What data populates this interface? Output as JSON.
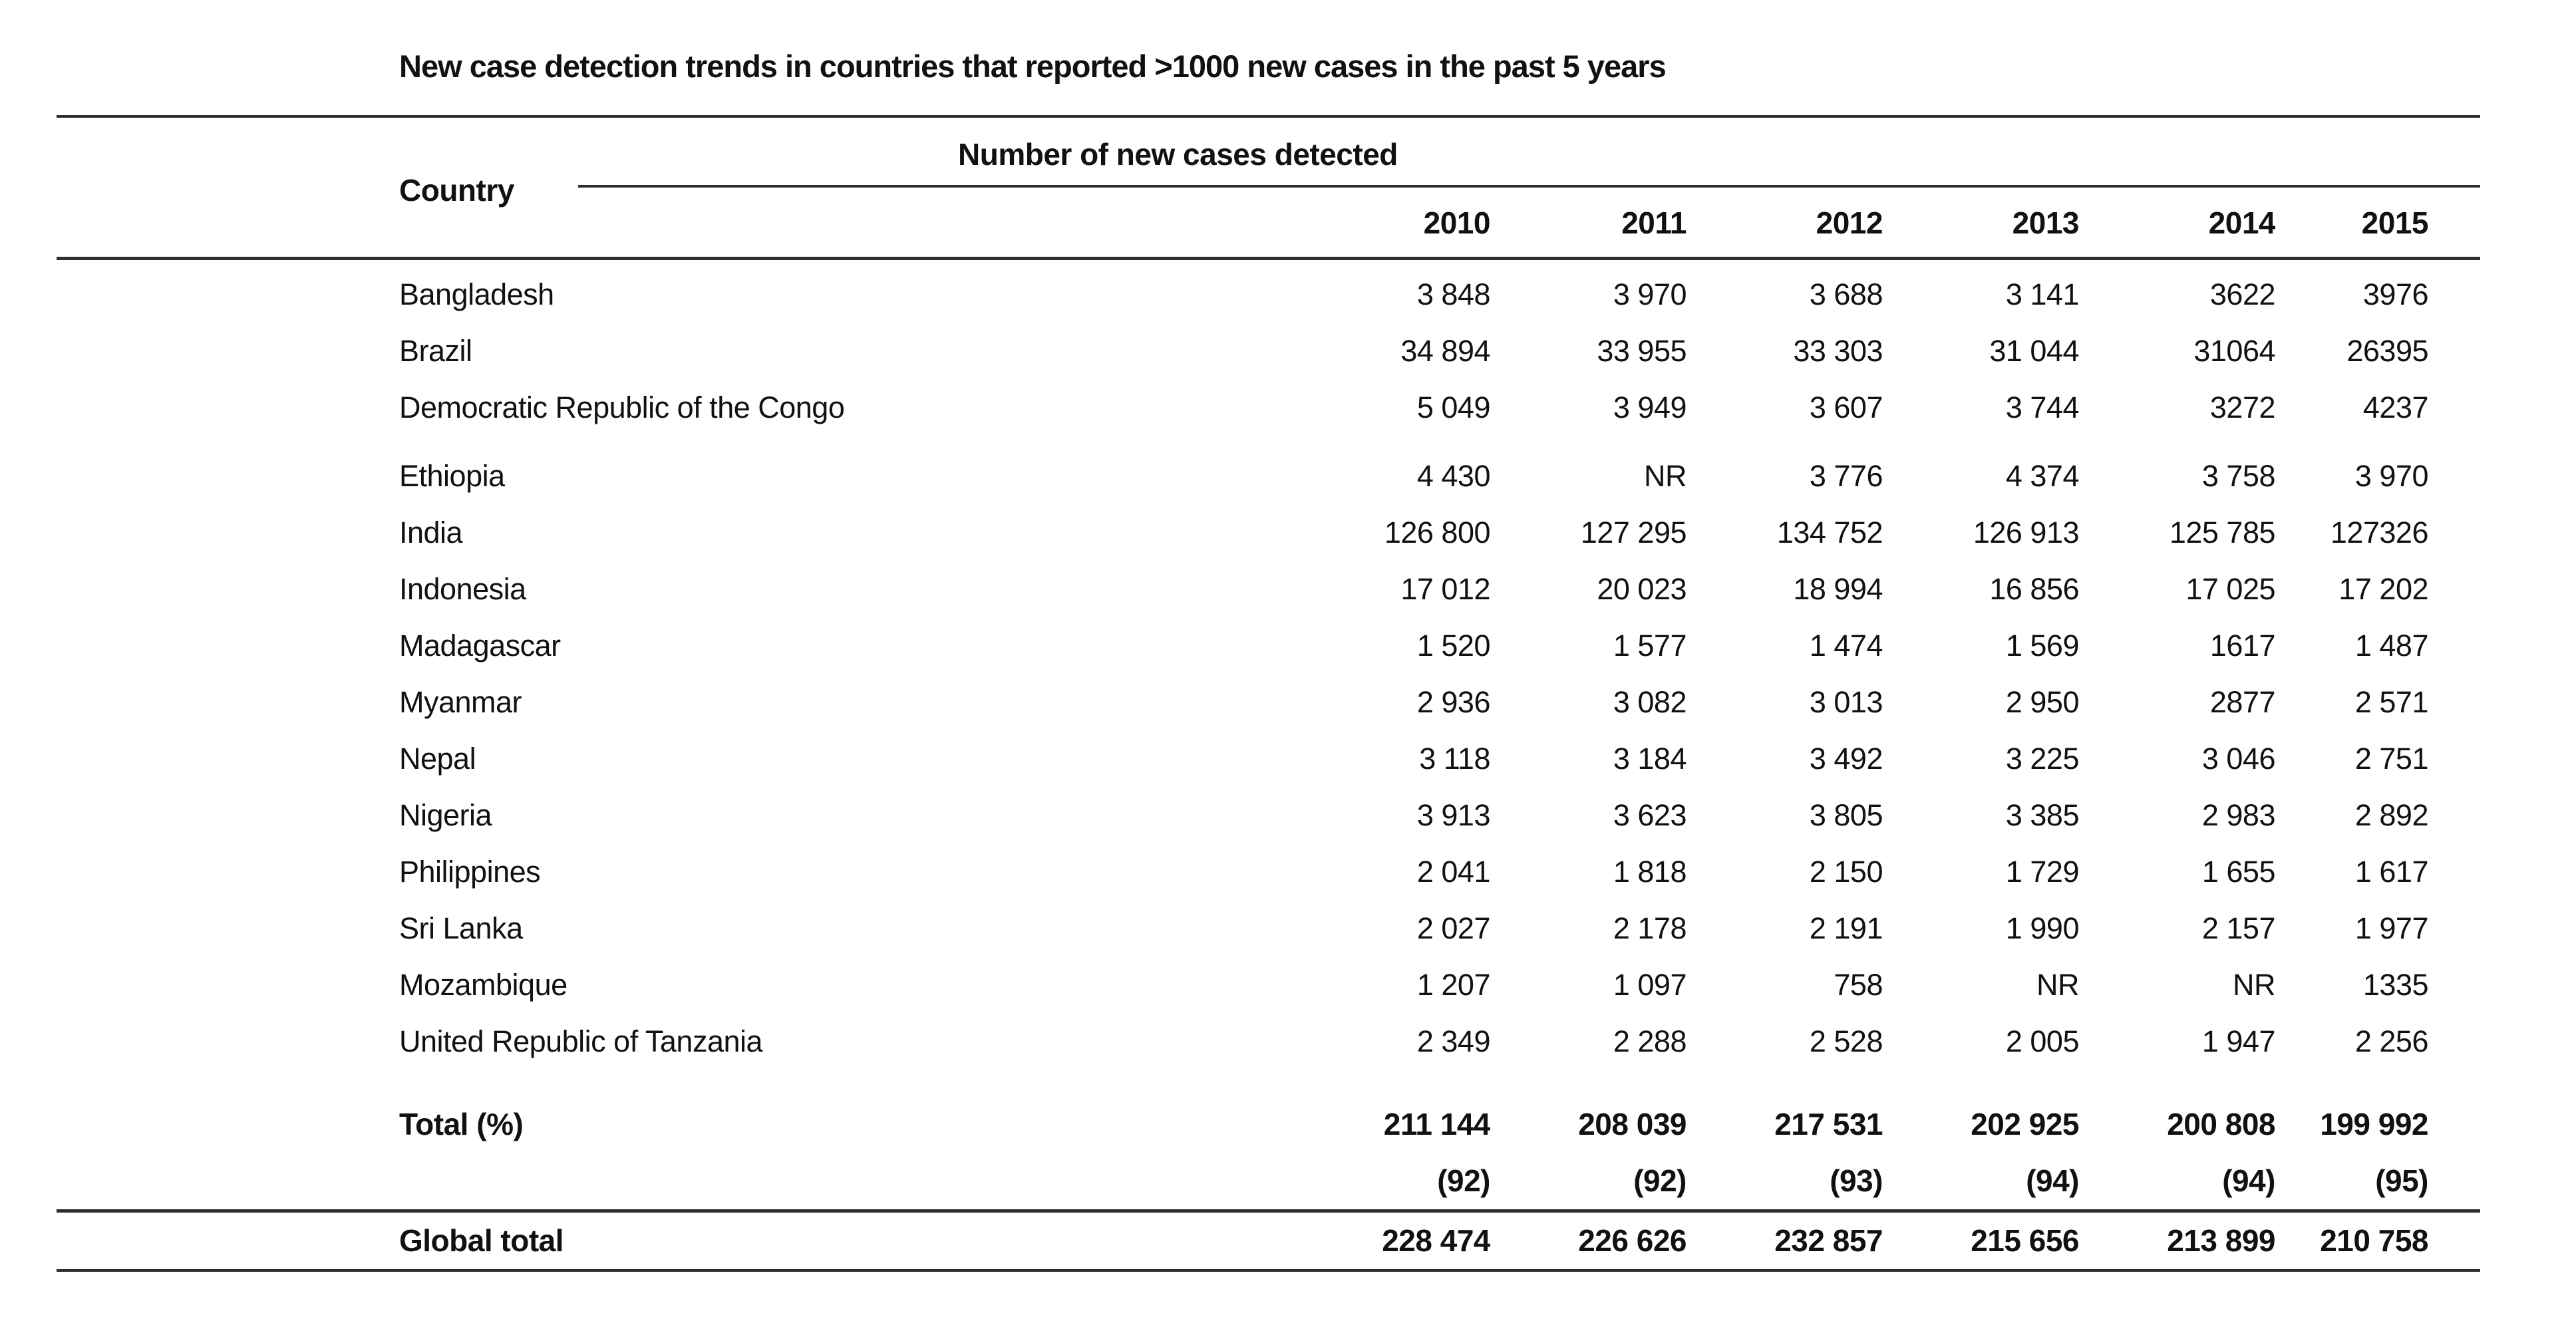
{
  "title": "New case detection trends in countries that reported >1000 new cases in the past 5 years",
  "table": {
    "country_header": "Country",
    "group_header": "Number of new cases detected",
    "years": [
      "2010",
      "2011",
      "2012",
      "2013",
      "2014",
      "2015"
    ],
    "rows": [
      {
        "country": "Bangladesh",
        "values": [
          "3 848",
          "3 970",
          "3 688",
          "3 141",
          "3622",
          "3976"
        ]
      },
      {
        "country": "Brazil",
        "values": [
          "34 894",
          "33 955",
          "33 303",
          "31 044",
          "31064",
          "26395"
        ]
      },
      {
        "country": "Democratic Republic of the Congo",
        "values": [
          "5 049",
          "3 949",
          "3 607",
          "3 744",
          "3272",
          "4237"
        ]
      },
      {
        "country": "Ethiopia",
        "values": [
          "4 430",
          "NR",
          "3 776",
          "4 374",
          "3 758",
          "3 970"
        ]
      },
      {
        "country": "India",
        "values": [
          "126 800",
          "127 295",
          "134 752",
          "126 913",
          "125 785",
          "127326"
        ]
      },
      {
        "country": "Indonesia",
        "values": [
          "17 012",
          "20 023",
          "18 994",
          "16 856",
          "17 025",
          "17 202"
        ]
      },
      {
        "country": "Madagascar",
        "values": [
          "1 520",
          "1 577",
          "1 474",
          "1 569",
          "1617",
          "1 487"
        ]
      },
      {
        "country": "Myanmar",
        "values": [
          "2 936",
          "3 082",
          "3 013",
          "2 950",
          "2877",
          "2 571"
        ]
      },
      {
        "country": "Nepal",
        "values": [
          "3 118",
          "3 184",
          "3 492",
          "3 225",
          "3 046",
          "2 751"
        ]
      },
      {
        "country": "Nigeria",
        "values": [
          "3 913",
          "3 623",
          "3 805",
          "3 385",
          "2 983",
          "2 892"
        ]
      },
      {
        "country": "Philippines",
        "values": [
          "2 041",
          "1 818",
          "2 150",
          "1 729",
          "1 655",
          "1 617"
        ]
      },
      {
        "country": "Sri Lanka",
        "values": [
          "2 027",
          "2 178",
          "2 191",
          "1 990",
          "2 157",
          "1 977"
        ]
      },
      {
        "country": "Mozambique",
        "values": [
          "1 207",
          "1 097",
          "758",
          "NR",
          "NR",
          "1335"
        ]
      },
      {
        "country": "United Republic of Tanzania",
        "values": [
          "2 349",
          "2 288",
          "2 528",
          "2 005",
          "1 947",
          "2 256"
        ]
      }
    ],
    "group_break_after_index": 2,
    "total_row": {
      "label": "Total (%)",
      "values": [
        "211 144",
        "208 039",
        "217 531",
        "202 925",
        "200 808",
        "199 992"
      ]
    },
    "total_pct_row": {
      "label": "",
      "values": [
        "(92)",
        "(92)",
        "(93)",
        "(94)",
        "(94)",
        "(95)"
      ]
    },
    "global_row": {
      "label": "Global total",
      "values": [
        "228 474",
        "226 626",
        "232 857",
        "215 656",
        "213 899",
        "210 758"
      ]
    }
  }
}
